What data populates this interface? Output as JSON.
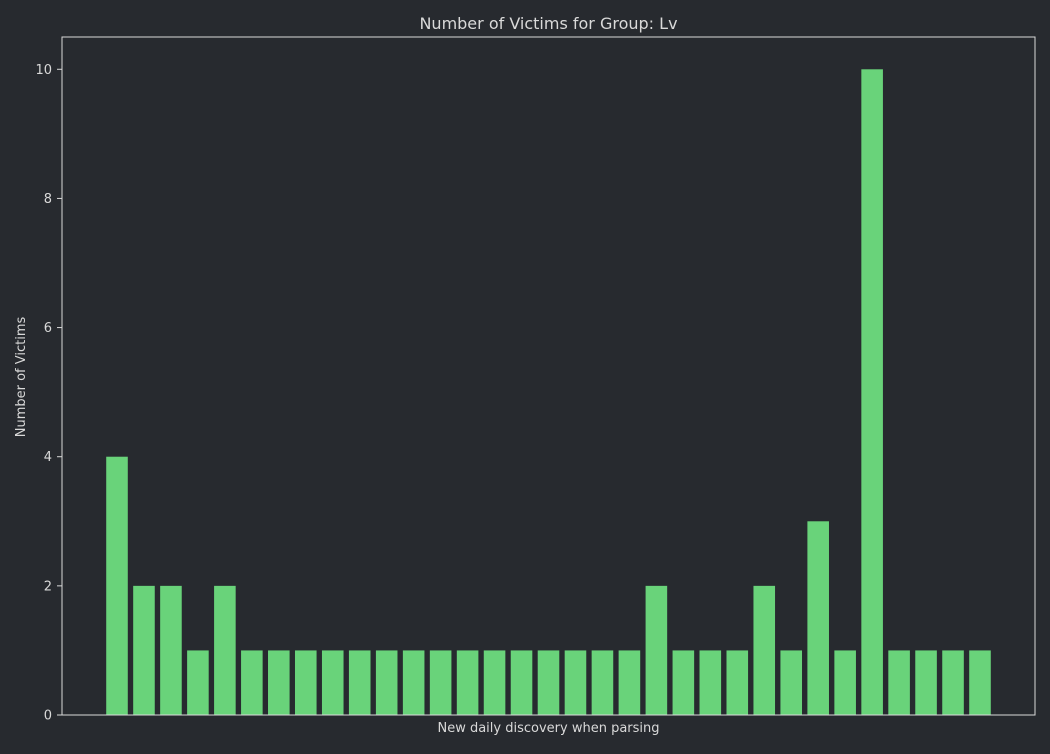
{
  "chart_data": {
    "type": "bar",
    "title": "Number of Victims for Group: Lv",
    "xlabel": "New daily discovery when parsing",
    "ylabel": "Number of Victims",
    "values": [
      4,
      2,
      2,
      1,
      2,
      1,
      1,
      1,
      1,
      1,
      1,
      1,
      1,
      1,
      1,
      1,
      1,
      1,
      1,
      1,
      2,
      1,
      1,
      1,
      2,
      1,
      3,
      1,
      10,
      1,
      1,
      1,
      1
    ],
    "ylim": [
      0,
      10.5
    ],
    "yticks": [
      0,
      2,
      4,
      6,
      8,
      10
    ],
    "x_tick_labels_shown": false,
    "grid": false,
    "legend": "none"
  },
  "colors": {
    "background": "#272a2f",
    "bar": "#69d37a",
    "axis": "#d9d9d9",
    "text": "#d9d9d9"
  }
}
